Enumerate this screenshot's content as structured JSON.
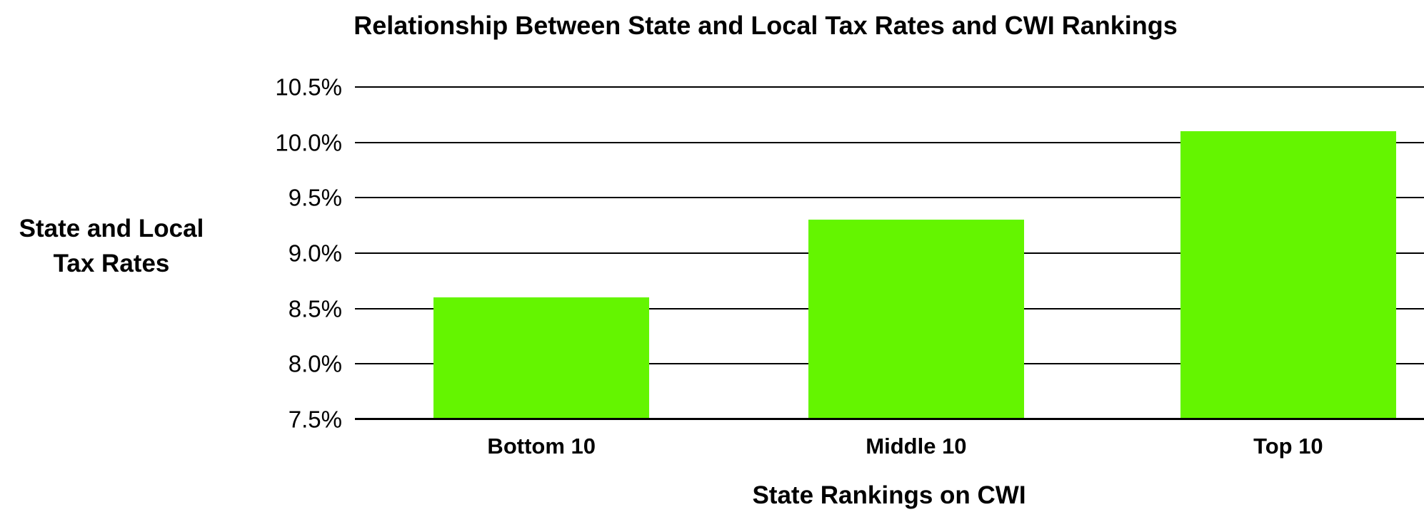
{
  "chart_data": {
    "type": "bar",
    "title": "Relationship Between State and Local Tax Rates and CWI Rankings",
    "xlabel": "State Rankings on CWI",
    "ylabel": "State and Local\nTax Rates",
    "categories": [
      "Bottom 10",
      "Middle 10",
      "Top 10"
    ],
    "values": [
      8.6,
      9.3,
      10.1
    ],
    "value_unit": "percent",
    "ylim": [
      7.5,
      10.5
    ],
    "yticks": [
      {
        "value": 10.5,
        "label": "10.5%"
      },
      {
        "value": 10.0,
        "label": "10.0%"
      },
      {
        "value": 9.5,
        "label": "9.5%"
      },
      {
        "value": 9.0,
        "label": "9.0%"
      },
      {
        "value": 8.5,
        "label": "8.5%"
      },
      {
        "value": 8.0,
        "label": "8.0%"
      },
      {
        "value": 7.5,
        "label": "7.5%"
      }
    ],
    "grid": true,
    "legend": false,
    "colors": {
      "bar": "#64F500",
      "axis": "#000000",
      "text": "#000000",
      "background": "#FFFFFF"
    }
  }
}
